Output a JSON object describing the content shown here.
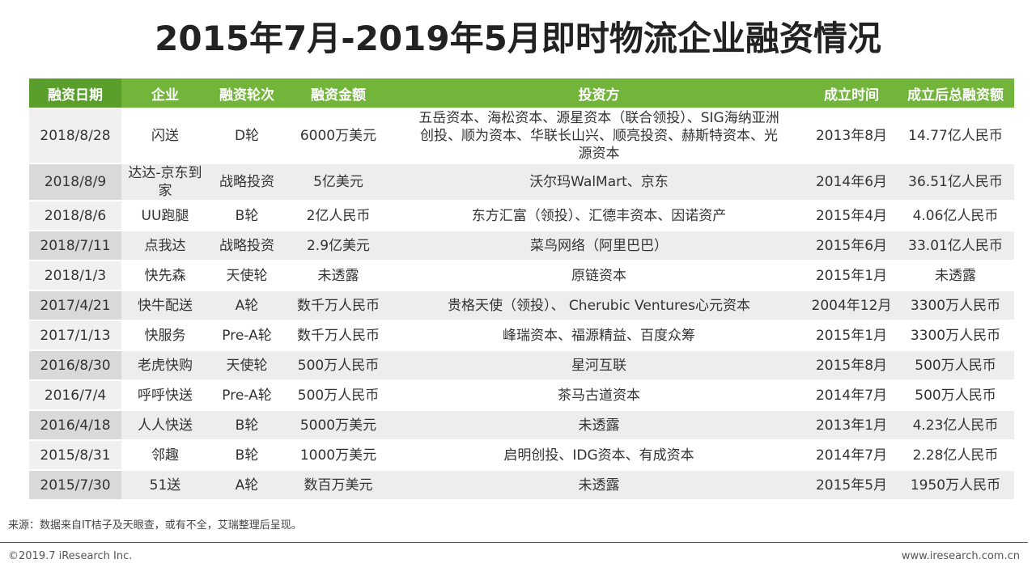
{
  "header": {
    "title": "2015年7月-2019年5月即时物流企业融资情况"
  },
  "table": {
    "columns": [
      "融资日期",
      "企业",
      "融资轮次",
      "融资金额",
      "投资方",
      "成立时间",
      "成立后总融资额"
    ],
    "rows": [
      [
        "2018/8/28",
        "闪送",
        "D轮",
        "6000万美元",
        "五岳资本、海松资本、源星资本（联合领投）、SIG海纳亚洲创投、顺为资本、华联长山兴、顺亮投资、赫斯特资本、光源资本",
        "2013年8月",
        "14.77亿人民币"
      ],
      [
        "2018/8/9",
        "达达-京东到家",
        "战略投资",
        "5亿美元",
        "沃尔玛WalMart、京东",
        "2014年6月",
        "36.51亿人民币"
      ],
      [
        "2018/8/6",
        "UU跑腿",
        "B轮",
        "2亿人民币",
        "东方汇富（领投）、汇德丰资本、因诺资产",
        "2015年4月",
        "4.06亿人民币"
      ],
      [
        "2018/7/11",
        "点我达",
        "战略投资",
        "2.9亿美元",
        "菜鸟网络（阿里巴巴）",
        "2015年6月",
        "33.01亿人民币"
      ],
      [
        "2018/1/3",
        "快先森",
        "天使轮",
        "未透露",
        "原链资本",
        "2015年1月",
        "未透露"
      ],
      [
        "2017/4/21",
        "快牛配送",
        "A轮",
        "数千万人民币",
        "贵格天使（领投）、 Cherubic Ventures心元资本",
        "2004年12月",
        "3300万人民币"
      ],
      [
        "2017/1/13",
        "快服务",
        "Pre-A轮",
        "数千万人民币",
        "峰瑞资本、福源精益、百度众筹",
        "2015年1月",
        "3300万人民币"
      ],
      [
        "2016/8/30",
        "老虎快购",
        "天使轮",
        "500万人民币",
        "星河互联",
        "2015年8月",
        "500万人民币"
      ],
      [
        "2016/7/4",
        "呼呼快送",
        "Pre-A轮",
        "500万人民币",
        "茶马古道资本",
        "2014年7月",
        "500万人民币"
      ],
      [
        "2016/4/18",
        "人人快送",
        "B轮",
        "5000万美元",
        "未透露",
        "2013年1月",
        "4.23亿人民币"
      ],
      [
        "2015/8/31",
        "邻趣",
        "B轮",
        "1000万美元",
        "启明创投、IDG资本、有成资本",
        "2014年7月",
        "2.28亿人民币"
      ],
      [
        "2015/7/30",
        "51送",
        "A轮",
        "数百万美元",
        "未透露",
        "2015年5月",
        "1950万人民币"
      ]
    ]
  },
  "source": "来源：数据来自IT桔子及天眼查，或有不全，艾瑞整理后呈现。",
  "footer": {
    "left": "©2019.7 iResearch Inc.",
    "right": "www.iresearch.com.cn"
  }
}
